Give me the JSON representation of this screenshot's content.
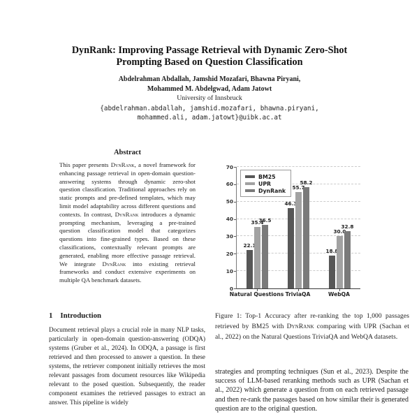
{
  "header": {
    "title_line1": "DynRank: Improving Passage Retrieval with Dynamic Zero-Shot",
    "title_line2": "Prompting Based on Question Classification",
    "authors_line1": "Abdelrahman Abdallah, Jamshid Mozafari, Bhawna Piryani,",
    "authors_line2": "Mohammed M. Abdelgwad, Adam Jatowt",
    "affiliation": "University of Innsbruck",
    "email_line1": "{abdelrahman.abdallah, jamshid.mozafari, bhawna.piryani,",
    "email_line2": "mohammed.ali, adam.jatowt}@uibk.ac.at"
  },
  "abstract": {
    "heading": "Abstract",
    "body": [
      {
        "t": "This paper presents "
      },
      {
        "t": "DynRank",
        "sc": true
      },
      {
        "t": ", a novel framework for enhancing passage retrieval in open-domain question-answering systems through dynamic zero-shot question classification. Traditional approaches rely on static prompts and pre-defined templates, which may limit model adaptability across different questions and contexts. In contrast, "
      },
      {
        "t": "DynRank",
        "sc": true
      },
      {
        "t": " introduces a dynamic prompting mechanism, leveraging a pre-trained question classification model that categorizes questions into fine-grained types. Based on these classifications, contextually relevant prompts are generated, enabling more effective passage retrieval. We integrate "
      },
      {
        "t": "DynRank",
        "sc": true
      },
      {
        "t": " into existing retrieval frameworks and conduct extensive experiments on multiple QA benchmark datasets."
      }
    ]
  },
  "introduction": {
    "number": "1",
    "heading": "Introduction",
    "body": "Document retrieval plays a crucial role in many NLP tasks, particularly in open-domain question-answering (ODQA) systems (Gruber et al., 2024). In ODQA, a passage is first retrieved and then processed to answer a question. In these systems, the retriever component initially retrieves the most relevant passages from document resources like Wikipedia relevant to the posed question. Subsequently, the reader component examines the retrieved passages to extract an answer. This pipeline is widely"
  },
  "figure": {
    "caption": [
      {
        "t": "Figure 1: Top-1 Accuracy after re-ranking the top 1,000 passages retrieved by BM25 with "
      },
      {
        "t": "DynRank",
        "sc": true
      },
      {
        "t": " comparing with UPR (Sachan et al., 2022) on the Natural Questions TriviaQA and WebQA datasets."
      }
    ]
  },
  "right_column": {
    "body": "strategies and prompting techniques (Sun et al., 2023). Despite the success of LLM-based reranking methods such as UPR (Sachan et al., 2022) which generate a question from on each retrieved passage and then re-rank the passages based on how similar their is generated question are to the original question."
  },
  "chart_data": {
    "type": "bar",
    "title": "",
    "xlabel": "",
    "ylabel": "",
    "categories": [
      "Natural Questions",
      "TriviaQA",
      "WebQA"
    ],
    "series": [
      {
        "name": "BM25",
        "color": "#575757",
        "values": [
          22.1,
          46.3,
          18.8
        ]
      },
      {
        "name": "UPR",
        "color": "#a2a2a2",
        "values": [
          35.4,
          55.7,
          30.0
        ]
      },
      {
        "name": "DynRank",
        "color": "#7a7a7a",
        "values": [
          36.5,
          58.2,
          32.8
        ]
      }
    ],
    "ylim": [
      0,
      70
    ],
    "yticks": [
      0,
      10,
      20,
      30,
      40,
      50,
      60,
      70
    ],
    "grid": "horizontal-dashed",
    "legend_position": "upper-left",
    "value_labels": true
  }
}
